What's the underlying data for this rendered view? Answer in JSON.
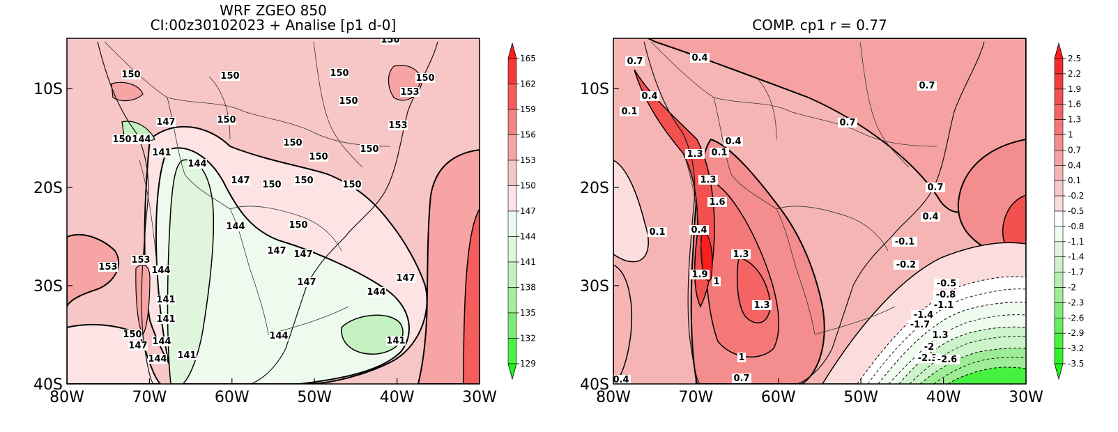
{
  "left_panel": {
    "title_line1": "WRF ZGEO 850",
    "title_line2": "CI:00z30102023 + Analise  [p1 d-0]",
    "x_ticks": [
      "80W",
      "70W",
      "60W",
      "50W",
      "40W",
      "30W"
    ],
    "y_ticks": [
      "10S",
      "20S",
      "30S",
      "40S"
    ],
    "colorbar_labels": [
      "165",
      "162",
      "159",
      "156",
      "153",
      "150",
      "147",
      "144",
      "141",
      "138",
      "135",
      "132",
      "129"
    ],
    "colorbar_colors": [
      "#ff1e1e",
      "#f33a3a",
      "#f55c5c",
      "#f48585",
      "#f6a4a4",
      "#f7c6c6",
      "#fde3e3",
      "#effaee",
      "#dff6dc",
      "#c3f1bf",
      "#a4ec9e",
      "#7ee977",
      "#4ef046",
      "#1ef51a"
    ],
    "contour_labels": [
      {
        "t": "150"
      },
      {
        "t": "150"
      },
      {
        "t": "150"
      },
      {
        "t": "150"
      },
      {
        "t": "150"
      },
      {
        "t": "153"
      },
      {
        "t": "150"
      },
      {
        "t": "153"
      },
      {
        "t": "147"
      },
      {
        "t": "150"
      },
      {
        "t": "150"
      },
      {
        "t": "144"
      },
      {
        "t": "141"
      },
      {
        "t": "150"
      },
      {
        "t": "150"
      },
      {
        "t": "150"
      },
      {
        "t": "150"
      },
      {
        "t": "144"
      },
      {
        "t": "147"
      },
      {
        "t": "150"
      },
      {
        "t": "144"
      },
      {
        "t": "150"
      },
      {
        "t": "150"
      },
      {
        "t": "147"
      },
      {
        "t": "147"
      },
      {
        "t": "147"
      },
      {
        "t": "153"
      },
      {
        "t": "144"
      },
      {
        "t": "153"
      },
      {
        "t": "141"
      },
      {
        "t": "147"
      },
      {
        "t": "144"
      },
      {
        "t": "141"
      },
      {
        "t": "141"
      },
      {
        "t": "144"
      },
      {
        "t": "150"
      },
      {
        "t": "147"
      },
      {
        "t": "144"
      },
      {
        "t": "144"
      },
      {
        "t": "141"
      }
    ]
  },
  "right_panel": {
    "title": "COMP. cp1   r =   0.77",
    "x_ticks": [
      "80W",
      "70W",
      "60W",
      "50W",
      "40W",
      "30W"
    ],
    "y_ticks": [
      "10S",
      "20S",
      "30S",
      "40S"
    ],
    "colorbar_labels": [
      "2.5",
      "2.2",
      "1.9",
      "1.6",
      "1.3",
      "1",
      "0.7",
      "0.4",
      "0.1",
      "-0.2",
      "-0.5",
      "-0.8",
      "-1.1",
      "-1.4",
      "-1.7",
      "-2",
      "-2.3",
      "-2.6",
      "-2.9",
      "-3.2",
      "-3.5"
    ],
    "colorbar_colors": [
      "#ff1e1e",
      "#f32a2a",
      "#f23d3d",
      "#f35050",
      "#f46464",
      "#f47878",
      "#f48d8d",
      "#f6a2a2",
      "#f6b5b5",
      "#f8c9c9",
      "#fbdddd",
      "#ffffff",
      "#f0fbef",
      "#dff6dc",
      "#cdf3ca",
      "#b7efb2",
      "#9ded96",
      "#82ea7b",
      "#66ec5e",
      "#46f03f",
      "#2df228",
      "#1ef51a"
    ],
    "contour_labels": [
      {
        "t": "0.4"
      },
      {
        "t": "0.7"
      },
      {
        "t": "0.4"
      },
      {
        "t": "0.1"
      },
      {
        "t": "0.7"
      },
      {
        "t": "0.7"
      },
      {
        "t": "0.4"
      },
      {
        "t": "1.3"
      },
      {
        "t": "0.1"
      },
      {
        "t": "1.3"
      },
      {
        "t": "0.7"
      },
      {
        "t": "1.6"
      },
      {
        "t": "0.4"
      },
      {
        "t": "0.1"
      },
      {
        "t": "0.4"
      },
      {
        "t": "1.3"
      },
      {
        "t": "-0.1"
      },
      {
        "t": "-0.2"
      },
      {
        "t": "1.9"
      },
      {
        "t": "1"
      },
      {
        "t": "-0.5"
      },
      {
        "t": "-0.8"
      },
      {
        "t": "-1.1"
      },
      {
        "t": "1.3"
      },
      {
        "t": "-1.4"
      },
      {
        "t": "-1.7"
      },
      {
        "t": "1.3"
      },
      {
        "t": "-2"
      },
      {
        "t": "-2.3"
      },
      {
        "t": "-2.6"
      },
      {
        "t": "1"
      },
      {
        "t": "0.4"
      },
      {
        "t": "0.7"
      }
    ]
  }
}
